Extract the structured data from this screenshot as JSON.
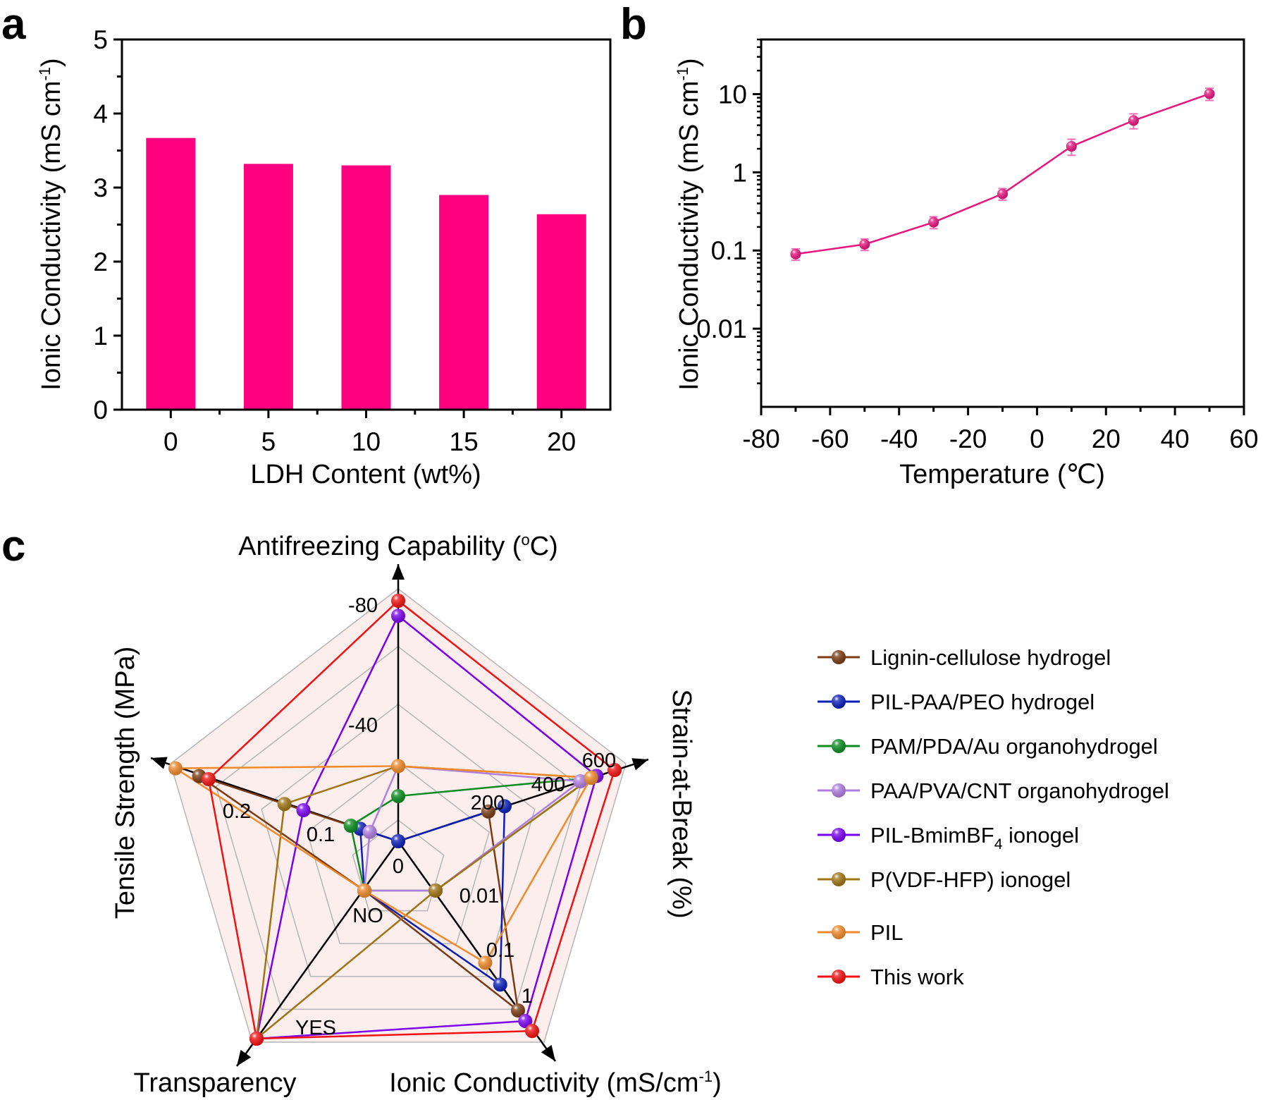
{
  "panel_labels": {
    "a": "a",
    "b": "b",
    "c": "c"
  },
  "chart_data": [
    {
      "id": "a",
      "type": "bar",
      "title": "",
      "xlabel": "LDH Content (wt%)",
      "ylabel_main": "Ionic Conductivity (mS cm",
      "ylabel_sup": "-1",
      "ylabel_tail": ")",
      "categories": [
        "0",
        "5",
        "10",
        "15",
        "20"
      ],
      "values": [
        3.67,
        3.32,
        3.3,
        2.9,
        2.64
      ],
      "ylim": [
        0,
        5
      ],
      "yticks": [
        "0",
        "1",
        "2",
        "3",
        "4",
        "5"
      ],
      "color": "#ff0080",
      "grid": false
    },
    {
      "id": "b",
      "type": "line",
      "title": "",
      "xlabel": "Temperature (℃)",
      "ylabel_main": "Ionic Conductivity (mS cm",
      "ylabel_sup": "-1",
      "ylabel_tail": ")",
      "x": [
        -70,
        -50,
        -30,
        -10,
        10,
        28,
        50
      ],
      "y": [
        0.09,
        0.12,
        0.23,
        0.53,
        2.15,
        4.6,
        10.1
      ],
      "y_err": [
        0.015,
        0.02,
        0.04,
        0.09,
        0.5,
        1.0,
        1.8
      ],
      "xlim": [
        -80,
        60
      ],
      "ylim": [
        0.001,
        50
      ],
      "yscale": "log",
      "xticks": [
        "-80",
        "-60",
        "-40",
        "-20",
        "0",
        "20",
        "40",
        "60"
      ],
      "yticks": [
        {
          "value": 0.01,
          "label": "0.01"
        },
        {
          "value": 0.1,
          "label": "0.1"
        },
        {
          "value": 1,
          "label": "1"
        },
        {
          "value": 10,
          "label": "10"
        }
      ],
      "color": "#e8157f",
      "grid": false
    },
    {
      "id": "c",
      "type": "radar",
      "axes": [
        {
          "key": "antifreeze",
          "title": "Antifreezing Capability (",
          "title_sup": "o",
          "title_tail": "C)",
          "ticks": [
            "-80",
            "-40",
            "0"
          ],
          "range": [
            0,
            -80
          ]
        },
        {
          "key": "strain",
          "title": "Strain-at-Break (%)",
          "ticks": [
            "600",
            "400",
            "200"
          ],
          "range": [
            0,
            600
          ]
        },
        {
          "key": "conductivity",
          "title": "Ionic Conductivity (mS/cm",
          "title_sup": "-1",
          "title_tail": ")",
          "ticks": [
            "0.01",
            "0.1",
            "1"
          ],
          "range": [
            0.01,
            1
          ],
          "scale": "log"
        },
        {
          "key": "transparency",
          "title": "Transparency",
          "ticks": [
            "NO",
            "YES"
          ],
          "range": [
            "NO",
            "YES"
          ]
        },
        {
          "key": "tensile",
          "title": "Tensile Strength (MPa)",
          "ticks": [
            "0.2",
            "0.1"
          ],
          "range": [
            0,
            0.2
          ]
        }
      ],
      "legend_position": "right",
      "series": [
        {
          "name": "Lignin-cellulose hydrogel",
          "color": "#7a3b12",
          "values": {
            "antifreeze": 0,
            "strain": 250,
            "conductivity": 1.0,
            "transparency": "NO",
            "tensile": 0.21
          }
        },
        {
          "name": "PIL-PAA/PEO hydrogel",
          "color": "#0a1fb8",
          "values": {
            "antifreeze": 0,
            "strain": 295,
            "conductivity": 0.37,
            "transparency": "NO",
            "tensile": 0.04
          }
        },
        {
          "name": "PAM/PDA/Au organohydrogel",
          "color": "#0a8c1e",
          "values": {
            "antifreeze": -15,
            "strain": 535,
            "conductivity": 0.01,
            "transparency": "NO",
            "tensile": 0.05
          }
        },
        {
          "name": "PAA/PVA/CNT organohydrogel",
          "color": "#b07ee0",
          "values": {
            "antifreeze": -25,
            "strain": 505,
            "conductivity": 0.01,
            "transparency": "NO",
            "tensile": 0.03
          }
        },
        {
          "name": "PIL-BmimBF",
          "name_sub": "4",
          "name_tail": " ionogel",
          "color": "#7a00f0",
          "values": {
            "antifreeze": -75,
            "strain": 550,
            "conductivity": 1.5,
            "transparency": "YES",
            "tensile": 0.1
          }
        },
        {
          "name": "P(VDF-HFP) ionogel",
          "color": "#a07414",
          "values": {
            "antifreeze": -25,
            "strain": 535,
            "conductivity": 0.01,
            "transparency": "YES",
            "tensile": 0.12
          }
        },
        {
          "name": "PIL",
          "color": "#f08a2a",
          "values": {
            "antifreeze": -25,
            "strain": 535,
            "conductivity": 0.16,
            "transparency": "NO",
            "tensile": 0.235
          }
        },
        {
          "name": "This work",
          "color": "#f21010",
          "values": {
            "antifreeze": -80,
            "strain": 600,
            "conductivity": 2.2,
            "transparency": "YES",
            "tensile": 0.2
          }
        }
      ]
    }
  ]
}
